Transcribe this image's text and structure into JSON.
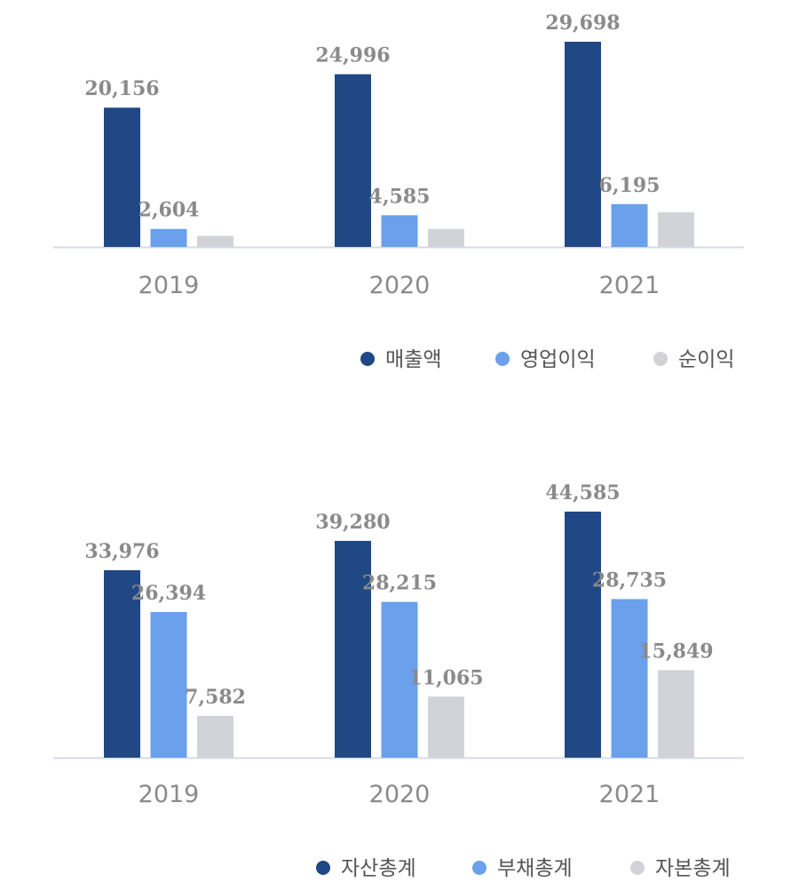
{
  "colors": [
    "#1f4884",
    "#6aa0ec",
    "#d1d3d8"
  ],
  "chart_data": [
    {
      "type": "bar",
      "categories": [
        "2019",
        "2020",
        "2021"
      ],
      "series": [
        {
          "name": "매출액",
          "values": [
            20156,
            24996,
            29698
          ],
          "labels": [
            "20,156",
            "24,996",
            "29,698"
          ]
        },
        {
          "name": "영업이익",
          "values": [
            2604,
            4585,
            6195
          ],
          "labels": [
            "2,604",
            "4,585",
            "6,195"
          ]
        },
        {
          "name": "순이익",
          "values": [
            1600,
            2600,
            5000
          ],
          "labels": [
            "",
            "",
            ""
          ]
        }
      ],
      "ylim": [
        0,
        29698
      ],
      "grid": false,
      "legend": "bottom-right"
    },
    {
      "type": "bar",
      "categories": [
        "2019",
        "2020",
        "2021"
      ],
      "series": [
        {
          "name": "자산총계",
          "values": [
            33976,
            39280,
            44585
          ],
          "labels": [
            "33,976",
            "39,280",
            "44,585"
          ]
        },
        {
          "name": "부채총계",
          "values": [
            26394,
            28215,
            28735
          ],
          "labels": [
            "26,394",
            "28,215",
            "28,735"
          ]
        },
        {
          "name": "자본총계",
          "values": [
            7582,
            11065,
            15849
          ],
          "labels": [
            "7,582",
            "11,065",
            "15,849"
          ]
        }
      ],
      "ylim": [
        0,
        44585
      ],
      "grid": false,
      "legend": "bottom-right"
    }
  ]
}
